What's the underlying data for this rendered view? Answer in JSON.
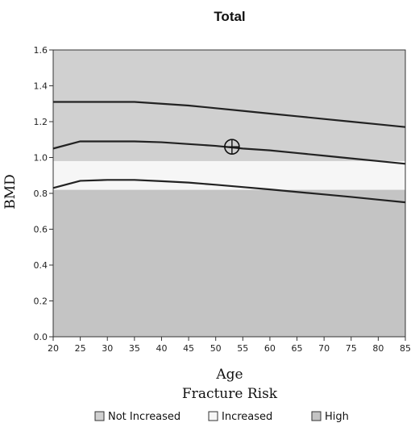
{
  "chart_data": {
    "type": "line",
    "title": "Total",
    "xlabel": "Age",
    "ylabel": "BMD",
    "xlim": [
      20,
      85
    ],
    "ylim": [
      0.0,
      1.6
    ],
    "x_ticks": [
      20,
      25,
      30,
      35,
      40,
      45,
      50,
      55,
      60,
      65,
      70,
      75,
      80,
      85
    ],
    "y_ticks": [
      "0.0",
      "0.2",
      "0.4",
      "0.6",
      "0.8",
      "1.0",
      "1.2",
      "1.4",
      "1.6"
    ],
    "x": [
      20,
      25,
      30,
      35,
      40,
      45,
      50,
      55,
      60,
      65,
      70,
      75,
      80,
      85
    ],
    "series": [
      {
        "values": [
          1.31,
          1.31,
          1.31,
          1.31,
          1.3,
          1.29,
          1.275,
          1.26,
          1.245,
          1.23,
          1.215,
          1.2,
          1.185,
          1.17
        ]
      },
      {
        "values": [
          1.05,
          1.09,
          1.09,
          1.09,
          1.085,
          1.075,
          1.065,
          1.05,
          1.04,
          1.025,
          1.01,
          0.995,
          0.98,
          0.965
        ]
      },
      {
        "values": [
          0.83,
          0.87,
          0.875,
          0.875,
          0.868,
          0.86,
          0.848,
          0.835,
          0.822,
          0.808,
          0.794,
          0.78,
          0.765,
          0.75
        ]
      }
    ],
    "bands": [
      {
        "category": "High",
        "from": 0.0,
        "to": 0.82,
        "color": "#c4c4c4"
      },
      {
        "category": "Increased",
        "from": 0.82,
        "to": 0.98,
        "color": "#f6f6f6"
      },
      {
        "category": "Not Increased",
        "from": 0.98,
        "to": 1.6,
        "color": "#d0d0d0"
      }
    ],
    "marker": {
      "x": 53,
      "y": 1.06,
      "shape": "circle-cross"
    },
    "legend": {
      "title": "Fracture Risk",
      "placement": "bottom",
      "items": [
        {
          "label": "Not Increased",
          "color": "#d0d0d0"
        },
        {
          "label": "Increased",
          "color": "#f6f6f6"
        },
        {
          "label": "High",
          "color": "#c4c4c4"
        }
      ]
    },
    "grid": false
  }
}
